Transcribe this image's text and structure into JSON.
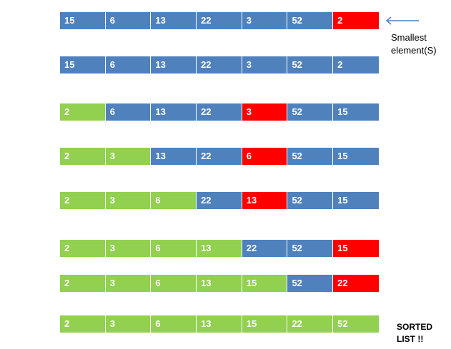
{
  "rows": [
    {
      "cells": [
        {
          "value": "15",
          "state": "blue"
        },
        {
          "value": "6",
          "state": "blue"
        },
        {
          "value": "13",
          "state": "blue"
        },
        {
          "value": "22",
          "state": "blue"
        },
        {
          "value": "3",
          "state": "blue"
        },
        {
          "value": "52",
          "state": "blue"
        },
        {
          "value": "2",
          "state": "red"
        }
      ]
    },
    {
      "cells": [
        {
          "value": "15",
          "state": "blue"
        },
        {
          "value": "6",
          "state": "blue"
        },
        {
          "value": "13",
          "state": "blue"
        },
        {
          "value": "22",
          "state": "blue"
        },
        {
          "value": "3",
          "state": "blue"
        },
        {
          "value": "52",
          "state": "blue"
        },
        {
          "value": "2",
          "state": "blue"
        }
      ]
    },
    {
      "cells": [
        {
          "value": "2",
          "state": "green"
        },
        {
          "value": "6",
          "state": "blue"
        },
        {
          "value": "13",
          "state": "blue"
        },
        {
          "value": "22",
          "state": "blue"
        },
        {
          "value": "3",
          "state": "red"
        },
        {
          "value": "52",
          "state": "blue"
        },
        {
          "value": "15",
          "state": "blue"
        }
      ]
    },
    {
      "cells": [
        {
          "value": "2",
          "state": "green"
        },
        {
          "value": "3",
          "state": "green"
        },
        {
          "value": "13",
          "state": "blue"
        },
        {
          "value": "22",
          "state": "blue"
        },
        {
          "value": "6",
          "state": "red"
        },
        {
          "value": "52",
          "state": "blue"
        },
        {
          "value": "15",
          "state": "blue"
        }
      ]
    },
    {
      "cells": [
        {
          "value": "2",
          "state": "green"
        },
        {
          "value": "3",
          "state": "green"
        },
        {
          "value": "6",
          "state": "green"
        },
        {
          "value": "22",
          "state": "blue"
        },
        {
          "value": "13",
          "state": "red"
        },
        {
          "value": "52",
          "state": "blue"
        },
        {
          "value": "15",
          "state": "blue"
        }
      ]
    },
    {
      "cells": [
        {
          "value": "2",
          "state": "green"
        },
        {
          "value": "3",
          "state": "green"
        },
        {
          "value": "6",
          "state": "green"
        },
        {
          "value": "13",
          "state": "green"
        },
        {
          "value": "22",
          "state": "blue"
        },
        {
          "value": "52",
          "state": "blue"
        },
        {
          "value": "15",
          "state": "red"
        }
      ]
    },
    {
      "cells": [
        {
          "value": "2",
          "state": "green"
        },
        {
          "value": "3",
          "state": "green"
        },
        {
          "value": "6",
          "state": "green"
        },
        {
          "value": "13",
          "state": "green"
        },
        {
          "value": "15",
          "state": "green"
        },
        {
          "value": "52",
          "state": "blue"
        },
        {
          "value": "22",
          "state": "red"
        }
      ]
    },
    {
      "cells": [
        {
          "value": "2",
          "state": "green"
        },
        {
          "value": "3",
          "state": "green"
        },
        {
          "value": "6",
          "state": "green"
        },
        {
          "value": "13",
          "state": "green"
        },
        {
          "value": "15",
          "state": "green"
        },
        {
          "value": "22",
          "state": "green"
        },
        {
          "value": "52",
          "state": "green"
        }
      ]
    }
  ],
  "labels": {
    "smallest_line1": "Smallest",
    "smallest_line2": "element(S)",
    "sorted_line1": "SORTED",
    "sorted_line2": "LIST !!"
  },
  "colors": {
    "unsorted": "#4f81bd",
    "sorted": "#92d050",
    "smallest": "#ff0000",
    "arrow": "#4f81bd"
  },
  "icons": {
    "pointer": "left-arrow-icon"
  }
}
